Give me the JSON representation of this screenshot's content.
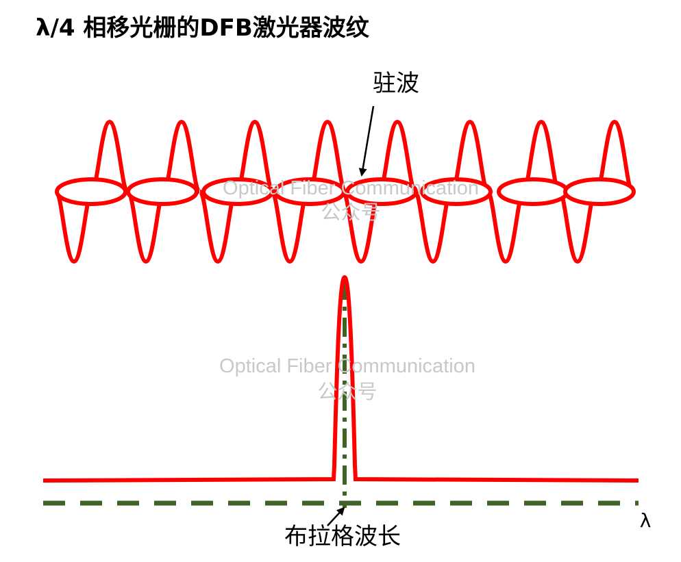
{
  "header": {
    "title": "λ/4 相移光栅的DFB激光器波纹"
  },
  "labels": {
    "standing_wave": "驻波",
    "bragg_wavelength": "布拉格波长",
    "axis": "λ"
  },
  "watermarks": [
    {
      "line1": "Optical Fiber Communication",
      "line2": "公众号"
    },
    {
      "line1": "Optical Fiber Communication",
      "line2": "公众号"
    }
  ]
}
